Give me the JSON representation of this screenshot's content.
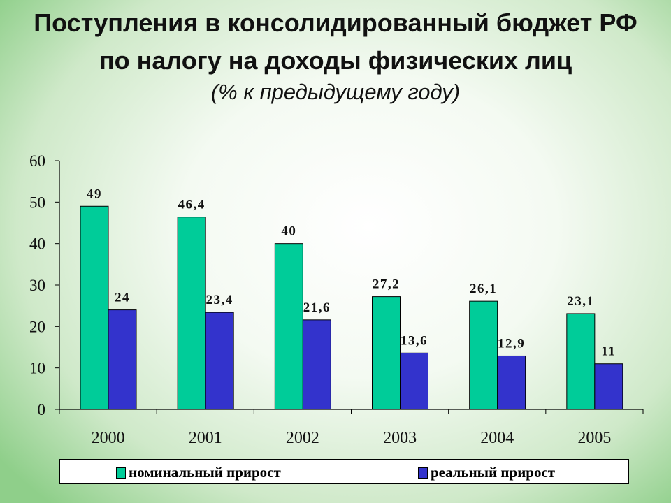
{
  "title_line1": "Поступления в консолидированный бюджет РФ",
  "title_line2": "по налогу на доходы физических лиц",
  "subtitle": "(% к предыдущему году)",
  "chart_data": {
    "type": "bar",
    "categories": [
      "2000",
      "2001",
      "2002",
      "2003",
      "2004",
      "2005"
    ],
    "series": [
      {
        "name": "номинальный прирост",
        "color": "#00CC99",
        "values": [
          49,
          46.4,
          40,
          27.2,
          26.1,
          23.1
        ],
        "labels": [
          "49",
          "46,4",
          "40",
          "27,2",
          "26,1",
          "23,1"
        ]
      },
      {
        "name": "реальный прирост",
        "color": "#3333CC",
        "values": [
          24,
          23.4,
          21.6,
          13.6,
          12.9,
          11
        ],
        "labels": [
          "24",
          "23,4",
          "21,6",
          "13,6",
          "12,9",
          "11"
        ]
      }
    ],
    "ylim": [
      0,
      60
    ],
    "yticks": [
      "0",
      "10",
      "20",
      "30",
      "40",
      "50",
      "60"
    ],
    "grid": false,
    "legend": "bottom"
  }
}
